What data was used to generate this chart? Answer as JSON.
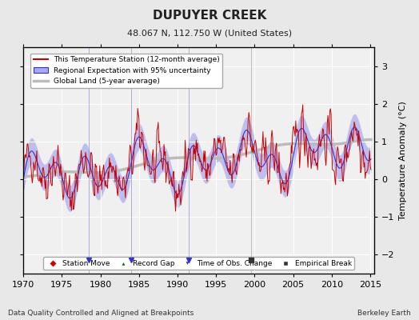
{
  "title": "DUPUYER CREEK",
  "subtitle": "48.067 N, 112.750 W (United States)",
  "xlabel_bottom": "Data Quality Controlled and Aligned at Breakpoints",
  "xlabel_right": "Berkeley Earth",
  "ylabel": "Temperature Anomaly (°C)",
  "xlim": [
    1970,
    2015.5
  ],
  "ylim": [
    -2.5,
    3.5
  ],
  "yticks": [
    -2,
    -1,
    0,
    1,
    2,
    3
  ],
  "xticks": [
    1970,
    1975,
    1980,
    1985,
    1990,
    1995,
    2000,
    2005,
    2010,
    2015
  ],
  "bg_color": "#e8e8e8",
  "plot_bg_color": "#f0f0f0",
  "grid_color": "#ffffff",
  "red_color": "#cc0000",
  "blue_color": "#3333cc",
  "blue_fill_color": "#aaaaee",
  "gray_color": "#bbbbbb",
  "obs_change_times": [
    1978.5,
    1984.0,
    1991.5
  ],
  "empirical_break_times": [
    1999.5
  ],
  "legend_items": [
    "This Temperature Station (12-month average)",
    "Regional Expectation with 95% uncertainty",
    "Global Land (5-year average)"
  ],
  "bottom_legend": [
    {
      "marker": "D",
      "color": "#cc0000",
      "label": "Station Move"
    },
    {
      "marker": "^",
      "color": "#006600",
      "label": "Record Gap"
    },
    {
      "marker": "v",
      "color": "#3333cc",
      "label": "Time of Obs. Change"
    },
    {
      "marker": "s",
      "color": "#333333",
      "label": "Empirical Break"
    }
  ]
}
